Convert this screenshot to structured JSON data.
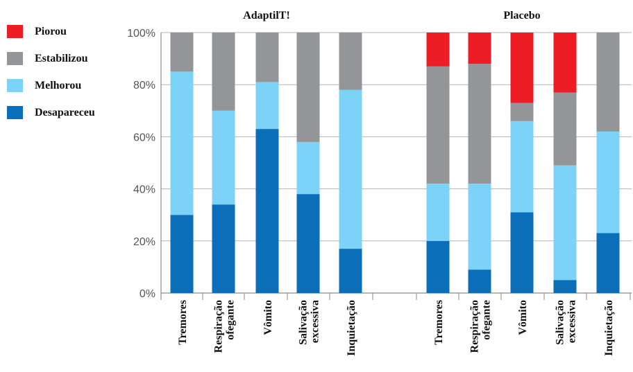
{
  "chart_data": {
    "type": "bar",
    "stacked": true,
    "y_ticks": [
      "0%",
      "20%",
      "40%",
      "60%",
      "80%",
      "100%"
    ],
    "ylim": [
      0,
      100
    ],
    "grid": true,
    "legend_position": "left",
    "legend": [
      {
        "name": "Piorou",
        "color": "#ee1c25"
      },
      {
        "name": "Estabilizou",
        "color": "#939598"
      },
      {
        "name": "Melhorou",
        "color": "#7dd3f7"
      },
      {
        "name": "Desapareceu",
        "color": "#0a6eb9"
      }
    ],
    "groups": [
      {
        "title": "AdaptilT!",
        "categories": [
          {
            "label": [
              "Tremores"
            ],
            "values": {
              "Desapareceu": 30,
              "Melhorou": 55,
              "Estabilizou": 15,
              "Piorou": 0
            }
          },
          {
            "label": [
              "Respiração",
              "ofegante"
            ],
            "values": {
              "Desapareceu": 34,
              "Melhorou": 36,
              "Estabilizou": 30,
              "Piorou": 0
            }
          },
          {
            "label": [
              "Vômito"
            ],
            "values": {
              "Desapareceu": 63,
              "Melhorou": 18,
              "Estabilizou": 19,
              "Piorou": 0
            }
          },
          {
            "label": [
              "Salivação",
              "excessiva"
            ],
            "values": {
              "Desapareceu": 38,
              "Melhorou": 20,
              "Estabilizou": 42,
              "Piorou": 0
            }
          },
          {
            "label": [
              "Inquietação"
            ],
            "values": {
              "Desapareceu": 17,
              "Melhorou": 61,
              "Estabilizou": 22,
              "Piorou": 0
            }
          }
        ]
      },
      {
        "title": "Placebo",
        "categories": [
          {
            "label": [
              "Tremores"
            ],
            "values": {
              "Desapareceu": 20,
              "Melhorou": 22,
              "Estabilizou": 45,
              "Piorou": 13
            }
          },
          {
            "label": [
              "Respiração",
              "ofegante"
            ],
            "values": {
              "Desapareceu": 9,
              "Melhorou": 33,
              "Estabilizou": 46,
              "Piorou": 12
            }
          },
          {
            "label": [
              "Vômito"
            ],
            "values": {
              "Desapareceu": 31,
              "Melhorou": 35,
              "Estabilizou": 7,
              "Piorou": 27
            }
          },
          {
            "label": [
              "Salivação",
              "excessiva"
            ],
            "values": {
              "Desapareceu": 5,
              "Melhorou": 44,
              "Estabilizou": 28,
              "Piorou": 23
            }
          },
          {
            "label": [
              "Inquietação"
            ],
            "values": {
              "Desapareceu": 23,
              "Melhorou": 39,
              "Estabilizou": 38,
              "Piorou": 0
            }
          }
        ]
      }
    ]
  }
}
